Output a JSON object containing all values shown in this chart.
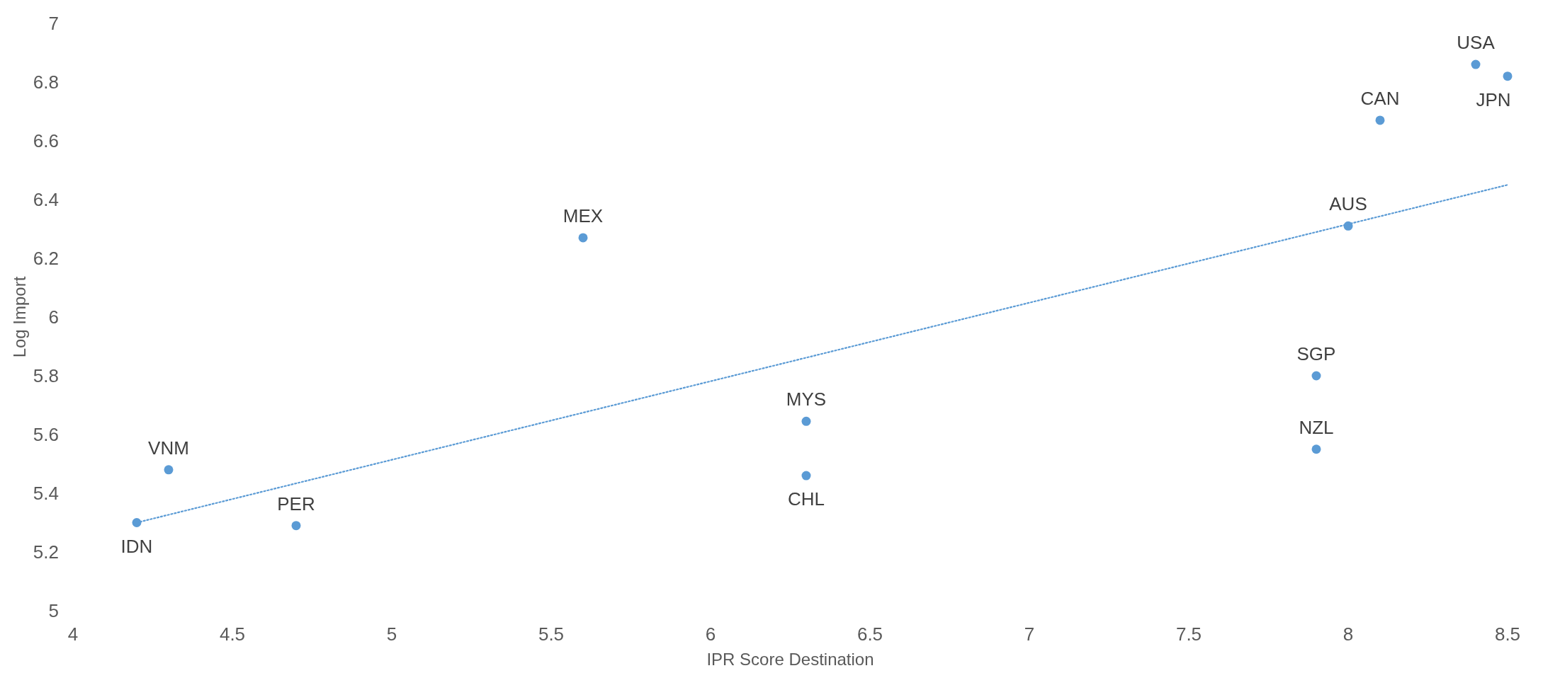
{
  "chart_data": {
    "type": "scatter",
    "xlabel": "IPR Score Destination",
    "ylabel": "Log Import",
    "xlim": [
      4,
      8.5
    ],
    "xticks": [
      4,
      4.5,
      5,
      5.5,
      6,
      6.5,
      7,
      7.5,
      8,
      8.5
    ],
    "ylim": [
      5,
      7
    ],
    "yticks": [
      5,
      5.2,
      5.4,
      5.6,
      5.8,
      6,
      6.2,
      6.4,
      6.6,
      6.8,
      7
    ],
    "grid": false,
    "series": [
      {
        "marker": "circle",
        "color": "#5b9bd5",
        "x": [
          4.2,
          4.3,
          4.7,
          5.6,
          6.3,
          6.3,
          7.9,
          7.9,
          8.0,
          8.1,
          8.4,
          8.5
        ],
        "values": [
          5.3,
          5.48,
          5.29,
          6.27,
          5.645,
          5.46,
          5.8,
          5.55,
          6.31,
          6.67,
          6.86,
          6.82
        ]
      },
      {
        "type": "line",
        "color": "#5b9bd5",
        "line_style": "dotted",
        "x": [
          4.2,
          8.5
        ],
        "values": [
          5.3,
          6.45
        ]
      }
    ],
    "annotations": [
      {
        "text": "IDN",
        "x": 4.2,
        "y": 5.3
      },
      {
        "text": "VNM",
        "x": 4.3,
        "y": 5.48
      },
      {
        "text": "PER",
        "x": 4.7,
        "y": 5.29
      },
      {
        "text": "MEX",
        "x": 5.6,
        "y": 6.27
      },
      {
        "text": "MYS",
        "x": 6.3,
        "y": 5.645
      },
      {
        "text": "CHL",
        "x": 6.3,
        "y": 5.46
      },
      {
        "text": "SGP",
        "x": 7.9,
        "y": 5.8
      },
      {
        "text": "NZL",
        "x": 7.9,
        "y": 5.55
      },
      {
        "text": "AUS",
        "x": 8.0,
        "y": 6.31
      },
      {
        "text": "CAN",
        "x": 8.1,
        "y": 6.67
      },
      {
        "text": "USA",
        "x": 8.4,
        "y": 6.86
      },
      {
        "text": "JPN",
        "x": 8.5,
        "y": 6.82
      }
    ]
  }
}
